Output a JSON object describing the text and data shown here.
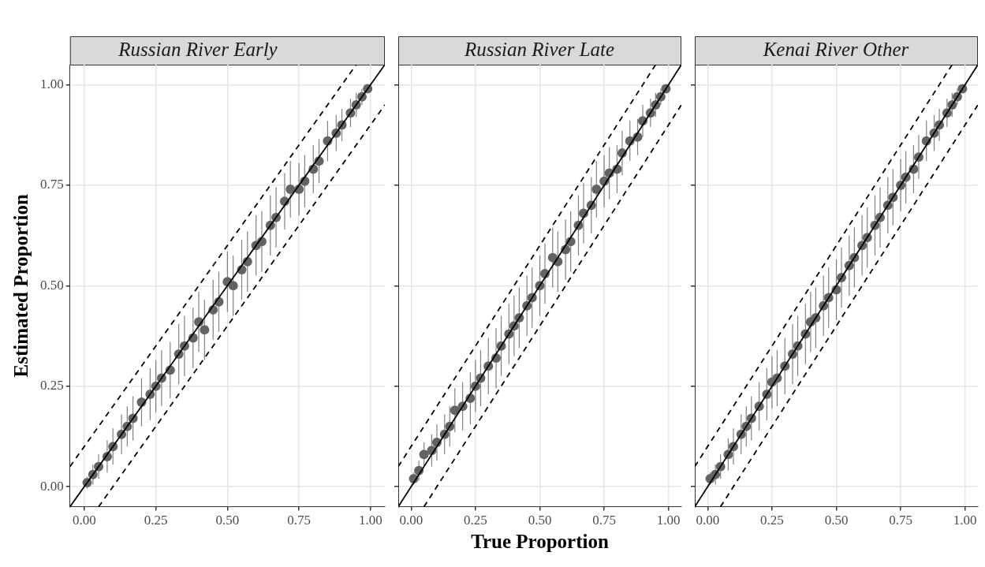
{
  "chart_data": [
    {
      "type": "scatter",
      "title": "Russian River Early",
      "ylabel": "Estimated Proportion",
      "xlim": [
        -0.05,
        1.05
      ],
      "ylim": [
        -0.05,
        1.05
      ],
      "xticks": [
        {
          "value": 0,
          "label": "0.00"
        },
        {
          "value": 0.25,
          "label": "0.25"
        },
        {
          "value": 0.5,
          "label": "0.50"
        },
        {
          "value": 0.75,
          "label": "0.75"
        },
        {
          "value": 1,
          "label": "1.00"
        }
      ],
      "yticks": [
        {
          "value": 0,
          "label": "0.00"
        },
        {
          "value": 0.25,
          "label": "0.25"
        },
        {
          "value": 0.5,
          "label": "0.50"
        },
        {
          "value": 0.75,
          "label": "0.75"
        },
        {
          "value": 1,
          "label": "1.00"
        }
      ],
      "grid": true,
      "legend": false,
      "series": [
        {
          "marker": "circle",
          "color": "#636363",
          "x": [
            0.01,
            0.03,
            0.05,
            0.08,
            0.1,
            0.13,
            0.15,
            0.17,
            0.2,
            0.23,
            0.25,
            0.27,
            0.3,
            0.33,
            0.35,
            0.38,
            0.4,
            0.42,
            0.45,
            0.47,
            0.5,
            0.52,
            0.55,
            0.57,
            0.6,
            0.62,
            0.65,
            0.67,
            0.7,
            0.72,
            0.75,
            0.77,
            0.8,
            0.82,
            0.85,
            0.88,
            0.9,
            0.93,
            0.95,
            0.97,
            0.99
          ],
          "values": [
            0.01,
            0.03,
            0.05,
            0.075,
            0.1,
            0.13,
            0.15,
            0.17,
            0.21,
            0.23,
            0.25,
            0.27,
            0.29,
            0.33,
            0.35,
            0.37,
            0.41,
            0.39,
            0.44,
            0.46,
            0.51,
            0.5,
            0.54,
            0.56,
            0.6,
            0.61,
            0.65,
            0.67,
            0.71,
            0.74,
            0.74,
            0.76,
            0.79,
            0.81,
            0.86,
            0.88,
            0.9,
            0.93,
            0.95,
            0.97,
            0.99
          ],
          "errors": [
            0.015,
            0.025,
            0.03,
            0.04,
            0.045,
            0.05,
            0.05,
            0.055,
            0.06,
            0.065,
            0.065,
            0.07,
            0.07,
            0.075,
            0.075,
            0.075,
            0.075,
            0.075,
            0.075,
            0.075,
            0.075,
            0.075,
            0.075,
            0.075,
            0.075,
            0.075,
            0.075,
            0.075,
            0.07,
            0.07,
            0.065,
            0.065,
            0.06,
            0.055,
            0.05,
            0.045,
            0.04,
            0.035,
            0.03,
            0.02,
            0.01
          ]
        },
        {
          "type": "line",
          "marker": "none",
          "color": "#000000",
          "line_style": "solid",
          "x": [
            -0.05,
            1.05
          ],
          "values": [
            -0.05,
            1.05
          ]
        },
        {
          "type": "line",
          "marker": "none",
          "color": "#000000",
          "line_style": "dashed",
          "x": [
            -0.05,
            0.95
          ],
          "values": [
            0.05,
            1.05
          ]
        },
        {
          "type": "line",
          "marker": "none",
          "color": "#000000",
          "line_style": "dashed",
          "x": [
            0.05,
            1.05
          ],
          "values": [
            -0.05,
            0.95
          ]
        }
      ]
    },
    {
      "type": "scatter",
      "title": "Russian River Late",
      "xlabel": "True Proportion",
      "xlim": [
        -0.05,
        1.05
      ],
      "ylim": [
        -0.05,
        1.05
      ],
      "xticks": [
        {
          "value": 0,
          "label": "0.00"
        },
        {
          "value": 0.25,
          "label": "0.25"
        },
        {
          "value": 0.5,
          "label": "0.50"
        },
        {
          "value": 0.75,
          "label": "0.75"
        },
        {
          "value": 1,
          "label": "1.00"
        }
      ],
      "yticks": [
        {
          "value": 0,
          "label": null
        },
        {
          "value": 0.25,
          "label": null
        },
        {
          "value": 0.5,
          "label": null
        },
        {
          "value": 0.75,
          "label": null
        },
        {
          "value": 1,
          "label": null
        }
      ],
      "grid": true,
      "legend": false,
      "tick_labels": "x",
      "series": [
        {
          "marker": "circle",
          "color": "#636363",
          "x": [
            0.01,
            0.03,
            0.05,
            0.08,
            0.1,
            0.13,
            0.15,
            0.17,
            0.2,
            0.23,
            0.25,
            0.27,
            0.3,
            0.33,
            0.35,
            0.38,
            0.4,
            0.42,
            0.45,
            0.47,
            0.5,
            0.52,
            0.55,
            0.57,
            0.6,
            0.62,
            0.65,
            0.67,
            0.7,
            0.72,
            0.75,
            0.77,
            0.8,
            0.82,
            0.85,
            0.88,
            0.9,
            0.93,
            0.95,
            0.97,
            0.99
          ],
          "values": [
            0.02,
            0.04,
            0.08,
            0.09,
            0.11,
            0.13,
            0.15,
            0.19,
            0.2,
            0.22,
            0.25,
            0.27,
            0.3,
            0.32,
            0.35,
            0.38,
            0.4,
            0.42,
            0.45,
            0.47,
            0.5,
            0.53,
            0.57,
            0.56,
            0.59,
            0.61,
            0.65,
            0.68,
            0.7,
            0.74,
            0.76,
            0.78,
            0.79,
            0.83,
            0.86,
            0.87,
            0.91,
            0.93,
            0.95,
            0.97,
            0.99
          ],
          "errors": [
            0.015,
            0.025,
            0.03,
            0.04,
            0.045,
            0.05,
            0.05,
            0.055,
            0.06,
            0.065,
            0.065,
            0.07,
            0.07,
            0.075,
            0.075,
            0.075,
            0.075,
            0.075,
            0.075,
            0.075,
            0.075,
            0.075,
            0.075,
            0.075,
            0.075,
            0.075,
            0.075,
            0.075,
            0.07,
            0.07,
            0.065,
            0.065,
            0.06,
            0.055,
            0.05,
            0.045,
            0.04,
            0.035,
            0.03,
            0.02,
            0.01
          ]
        },
        {
          "type": "line",
          "marker": "none",
          "color": "#000000",
          "line_style": "solid",
          "x": [
            -0.05,
            1.05
          ],
          "values": [
            -0.05,
            1.05
          ]
        },
        {
          "type": "line",
          "marker": "none",
          "color": "#000000",
          "line_style": "dashed",
          "x": [
            -0.05,
            0.95
          ],
          "values": [
            0.05,
            1.05
          ]
        },
        {
          "type": "line",
          "marker": "none",
          "color": "#000000",
          "line_style": "dashed",
          "x": [
            0.05,
            1.05
          ],
          "values": [
            -0.05,
            0.95
          ]
        }
      ]
    },
    {
      "type": "scatter",
      "title": "Kenai River Other",
      "xlim": [
        -0.05,
        1.05
      ],
      "ylim": [
        -0.05,
        1.05
      ],
      "xticks": [
        {
          "value": 0,
          "label": "0.00"
        },
        {
          "value": 0.25,
          "label": "0.25"
        },
        {
          "value": 0.5,
          "label": "0.50"
        },
        {
          "value": 0.75,
          "label": "0.75"
        },
        {
          "value": 1,
          "label": "1.00"
        }
      ],
      "yticks": [
        {
          "value": 0,
          "label": null
        },
        {
          "value": 0.25,
          "label": null
        },
        {
          "value": 0.5,
          "label": null
        },
        {
          "value": 0.75,
          "label": null
        },
        {
          "value": 1,
          "label": null
        }
      ],
      "grid": true,
      "legend": false,
      "tick_labels": "x",
      "series": [
        {
          "marker": "circle",
          "color": "#636363",
          "x": [
            0.01,
            0.03,
            0.05,
            0.08,
            0.1,
            0.13,
            0.15,
            0.17,
            0.2,
            0.23,
            0.25,
            0.27,
            0.3,
            0.33,
            0.35,
            0.38,
            0.4,
            0.42,
            0.45,
            0.47,
            0.5,
            0.52,
            0.55,
            0.57,
            0.6,
            0.62,
            0.65,
            0.67,
            0.7,
            0.72,
            0.75,
            0.77,
            0.8,
            0.82,
            0.85,
            0.88,
            0.9,
            0.93,
            0.95,
            0.97,
            0.99
          ],
          "values": [
            0.02,
            0.03,
            0.05,
            0.08,
            0.1,
            0.13,
            0.15,
            0.17,
            0.2,
            0.23,
            0.26,
            0.27,
            0.3,
            0.33,
            0.35,
            0.38,
            0.41,
            0.42,
            0.45,
            0.47,
            0.49,
            0.52,
            0.55,
            0.57,
            0.6,
            0.62,
            0.65,
            0.67,
            0.7,
            0.72,
            0.75,
            0.77,
            0.79,
            0.82,
            0.86,
            0.88,
            0.9,
            0.93,
            0.95,
            0.97,
            0.99
          ],
          "errors": [
            0.015,
            0.025,
            0.03,
            0.04,
            0.045,
            0.05,
            0.05,
            0.055,
            0.06,
            0.065,
            0.065,
            0.07,
            0.07,
            0.075,
            0.075,
            0.075,
            0.075,
            0.075,
            0.075,
            0.075,
            0.075,
            0.075,
            0.075,
            0.075,
            0.075,
            0.075,
            0.075,
            0.075,
            0.07,
            0.07,
            0.065,
            0.065,
            0.06,
            0.055,
            0.05,
            0.045,
            0.04,
            0.035,
            0.03,
            0.02,
            0.01
          ]
        },
        {
          "type": "line",
          "marker": "none",
          "color": "#000000",
          "line_style": "solid",
          "x": [
            -0.05,
            1.05
          ],
          "values": [
            -0.05,
            1.05
          ]
        },
        {
          "type": "line",
          "marker": "none",
          "color": "#000000",
          "line_style": "dashed",
          "x": [
            -0.05,
            0.95
          ],
          "values": [
            0.05,
            1.05
          ]
        },
        {
          "type": "line",
          "marker": "none",
          "color": "#000000",
          "line_style": "dashed",
          "x": [
            0.05,
            1.05
          ],
          "values": [
            -0.05,
            0.95
          ]
        }
      ]
    }
  ]
}
